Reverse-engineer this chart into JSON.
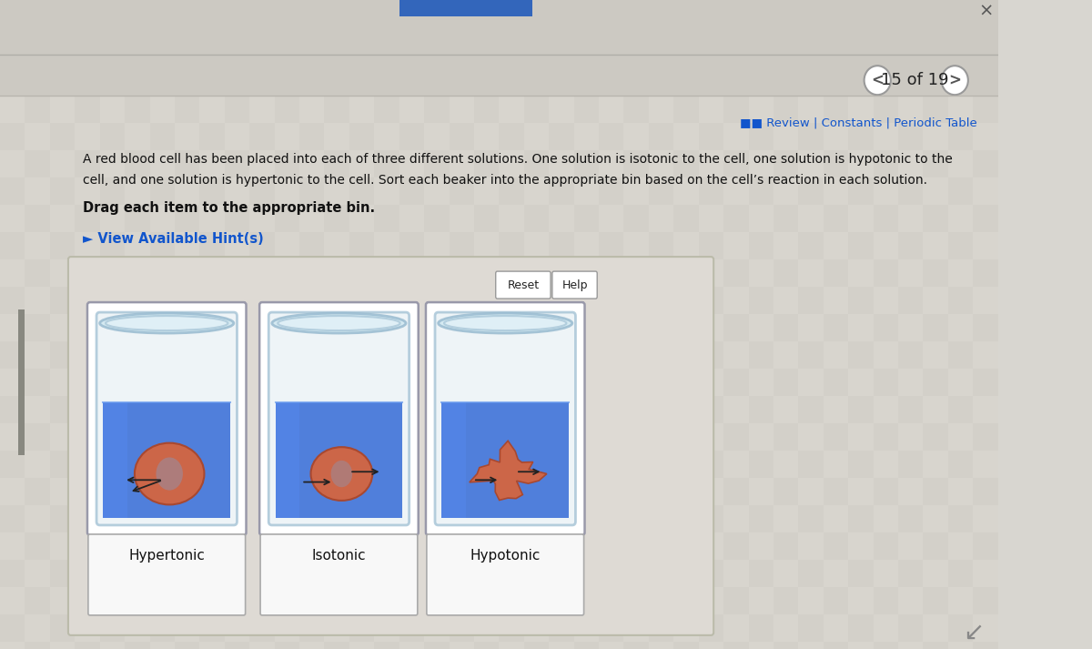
{
  "bg_color": "#d8d6d0",
  "top_bar_color": "#c8c6c0",
  "content_bg": "#d8d6d0",
  "header_text": "15 of 19",
  "review_text": "■■ Review | Constants | Periodic Table",
  "question_line1": "A red blood cell has been placed into each of three different solutions. One solution is isotonic to the cell, one solution is hypotonic to the",
  "question_line2": "cell, and one solution is hypertonic to the cell. Sort each beaker into the appropriate bin based on the cell’s reaction in each solution.",
  "drag_text": "Drag each item to the appropriate bin.",
  "hint_text": "► View Available Hint(s)",
  "reset_text": "Reset",
  "help_text": "Help",
  "beaker_labels": [
    "Hypertonic",
    "Isotonic",
    "Hypotonic"
  ],
  "text_color": "#111111",
  "link_color": "#1155cc",
  "hint_color": "#1155cc",
  "panel_bg": "#e0deda",
  "beaker_card_bg": "#f0f0f0",
  "water_color": "#3a6fd8",
  "beaker_glass_color": "#c8dde8",
  "cell_color": "#cc6648",
  "cell_edge": "#a84830",
  "label_box_bg": "#f8f8f8",
  "label_box_border": "#aaaaaa",
  "arrow_color": "#222222"
}
